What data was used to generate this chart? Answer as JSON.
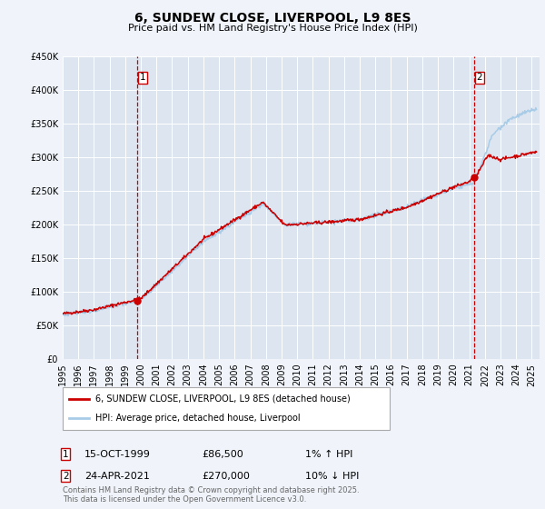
{
  "title": "6, SUNDEW CLOSE, LIVERPOOL, L9 8ES",
  "subtitle": "Price paid vs. HM Land Registry's House Price Index (HPI)",
  "ylim": [
    0,
    450000
  ],
  "yticks": [
    0,
    50000,
    100000,
    150000,
    200000,
    250000,
    300000,
    350000,
    400000,
    450000
  ],
  "xlim_start": 1995.0,
  "xlim_end": 2025.5,
  "background_color": "#f0f4fa",
  "plot_bg_color": "#dde6f0",
  "grid_color": "#ffffff",
  "hpi_color": "#a8cce8",
  "price_color": "#cc0000",
  "vline_color": "#cc0000",
  "sale1_x": 1999.79,
  "sale1_y": 86500,
  "sale2_x": 2021.31,
  "sale2_y": 270000,
  "legend_label1": "6, SUNDEW CLOSE, LIVERPOOL, L9 8ES (detached house)",
  "legend_label2": "HPI: Average price, detached house, Liverpool",
  "sale1_date": "15-OCT-1999",
  "sale1_price": "£86,500",
  "sale1_hpi": "1% ↑ HPI",
  "sale2_date": "24-APR-2021",
  "sale2_price": "£270,000",
  "sale2_hpi": "10% ↓ HPI",
  "footer": "Contains HM Land Registry data © Crown copyright and database right 2025.\nThis data is licensed under the Open Government Licence v3.0."
}
